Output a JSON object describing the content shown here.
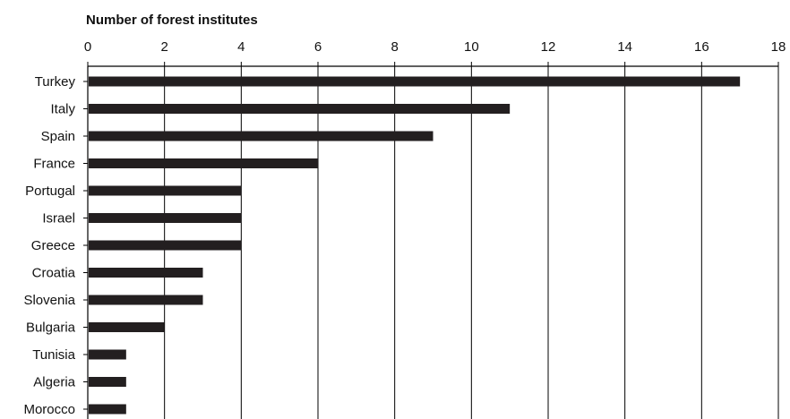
{
  "chart_data": {
    "type": "bar",
    "orientation": "horizontal",
    "title": "Number of forest institutes",
    "categories": [
      "Turkey",
      "Italy",
      "Spain",
      "France",
      "Portugal",
      "Israel",
      "Greece",
      "Croatia",
      "Slovenia",
      "Bulgaria",
      "Tunisia",
      "Algeria",
      "Morocco"
    ],
    "values": [
      17,
      11,
      9,
      6,
      4,
      4,
      4,
      3,
      3,
      2,
      1,
      1,
      1
    ],
    "xlim": [
      0,
      18
    ],
    "xticks": [
      0,
      2,
      4,
      6,
      8,
      10,
      12,
      14,
      16,
      18
    ],
    "x_axis_position": "top",
    "grid": "vertical",
    "legend": "none",
    "colors": {
      "bar": "#231f20",
      "grid": "#000000",
      "text": "#111111"
    }
  }
}
